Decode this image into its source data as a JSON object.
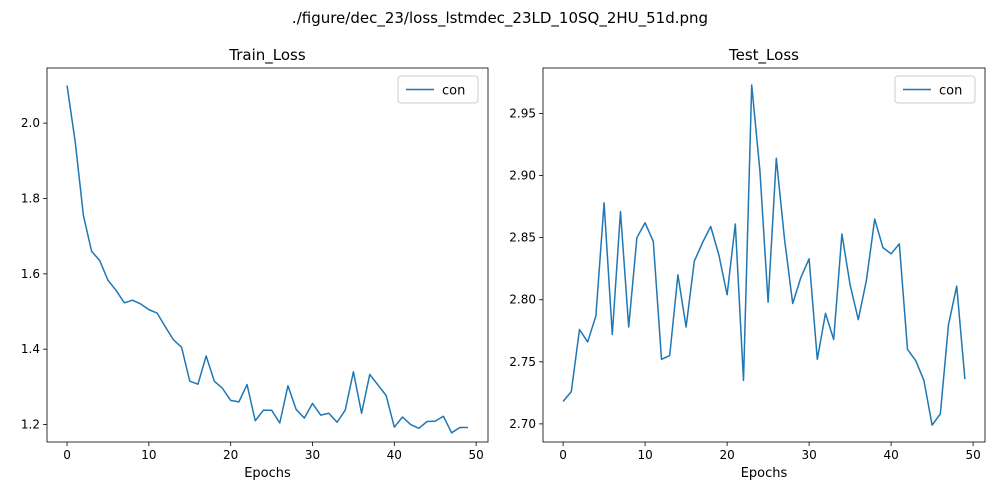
{
  "figure": {
    "suptitle": "./figure/dec_23/loss_lstmdec_23LD_10SQ_2HU_51d.png",
    "line_color": "#1f77b4"
  },
  "chart_data": [
    {
      "type": "line",
      "title": "Train_Loss",
      "xlabel": "Epochs",
      "ylabel": "",
      "xlim": [
        -2.45,
        51.45
      ],
      "ylim": [
        1.1536,
        2.1464
      ],
      "xticks": [
        0,
        10,
        20,
        30,
        40,
        50
      ],
      "xtick_labels": [
        "0",
        "10",
        "20",
        "30",
        "40",
        "50"
      ],
      "yticks": [
        1.2,
        1.4,
        1.6,
        1.8,
        2.0
      ],
      "ytick_labels": [
        "1.2",
        "1.4",
        "1.6",
        "1.8",
        "2.0"
      ],
      "legend": "upper right",
      "series": [
        {
          "name": "con",
          "x": [
            0,
            1,
            2,
            3,
            4,
            5,
            6,
            7,
            8,
            9,
            10,
            11,
            12,
            13,
            14,
            15,
            16,
            17,
            18,
            19,
            20,
            21,
            22,
            23,
            24,
            25,
            26,
            27,
            28,
            29,
            30,
            31,
            32,
            33,
            34,
            35,
            36,
            37,
            38,
            39,
            40,
            41,
            42,
            43,
            44,
            45,
            46,
            47,
            48,
            49
          ],
          "y": [
            2.1,
            1.95,
            1.755,
            1.66,
            1.635,
            1.583,
            1.556,
            1.523,
            1.53,
            1.52,
            1.505,
            1.496,
            1.46,
            1.425,
            1.405,
            1.315,
            1.307,
            1.382,
            1.315,
            1.296,
            1.264,
            1.26,
            1.306,
            1.21,
            1.238,
            1.238,
            1.204,
            1.303,
            1.24,
            1.217,
            1.256,
            1.225,
            1.23,
            1.206,
            1.238,
            1.34,
            1.23,
            1.333,
            1.305,
            1.277,
            1.193,
            1.22,
            1.2,
            1.19,
            1.208,
            1.209,
            1.222,
            1.178,
            1.192,
            1.192
          ]
        }
      ]
    },
    {
      "type": "line",
      "title": "Test_Loss",
      "xlabel": "Epochs",
      "ylabel": "",
      "xlim": [
        -2.45,
        51.45
      ],
      "ylim": [
        2.6854,
        2.9867
      ],
      "xticks": [
        0,
        10,
        20,
        30,
        40,
        50
      ],
      "xtick_labels": [
        "0",
        "10",
        "20",
        "30",
        "40",
        "50"
      ],
      "yticks": [
        2.7,
        2.75,
        2.8,
        2.85,
        2.9,
        2.95
      ],
      "ytick_labels": [
        "2.70",
        "2.75",
        "2.80",
        "2.85",
        "2.90",
        "2.95"
      ],
      "legend": "upper right",
      "series": [
        {
          "name": "con",
          "x": [
            0,
            1,
            2,
            3,
            4,
            5,
            6,
            7,
            8,
            9,
            10,
            11,
            12,
            13,
            14,
            15,
            16,
            17,
            18,
            19,
            20,
            21,
            22,
            23,
            24,
            25,
            26,
            27,
            28,
            29,
            30,
            31,
            32,
            33,
            34,
            35,
            36,
            37,
            38,
            39,
            40,
            41,
            42,
            43,
            44,
            45,
            46,
            47,
            48,
            49
          ],
          "y": [
            2.718,
            2.726,
            2.776,
            2.766,
            2.787,
            2.878,
            2.772,
            2.871,
            2.778,
            2.85,
            2.862,
            2.847,
            2.752,
            2.755,
            2.82,
            2.778,
            2.831,
            2.846,
            2.859,
            2.836,
            2.804,
            2.861,
            2.735,
            2.973,
            2.904,
            2.798,
            2.914,
            2.849,
            2.797,
            2.818,
            2.833,
            2.752,
            2.789,
            2.768,
            2.853,
            2.812,
            2.784,
            2.816,
            2.865,
            2.842,
            2.837,
            2.845,
            2.76,
            2.751,
            2.735,
            2.699,
            2.708,
            2.78,
            2.811,
            2.736
          ]
        }
      ]
    }
  ]
}
